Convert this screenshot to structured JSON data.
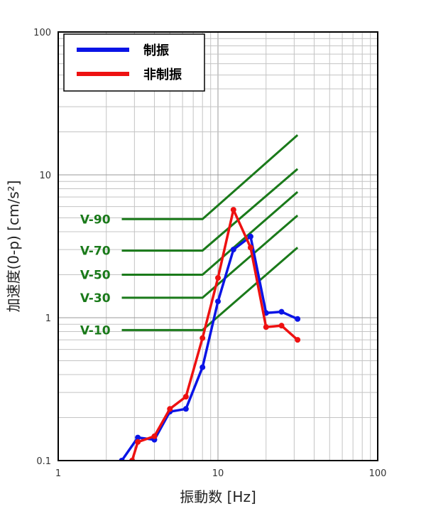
{
  "chart_data": {
    "type": "line",
    "xlabel": "振動数 [Hz]",
    "ylabel": "加速度(0-p) [cm/s²]",
    "x_scale": "log",
    "y_scale": "log",
    "xlim": [
      1,
      100
    ],
    "ylim": [
      0.1,
      100
    ],
    "x_ticks": [
      "1",
      "10",
      "100"
    ],
    "y_ticks": [
      "0.1",
      "1",
      "10",
      "100"
    ],
    "grid": true,
    "legend_position": "top-left",
    "series": [
      {
        "name": "制振",
        "color": "#0a14e6",
        "x": [
          2.5,
          3.15,
          4.0,
          5.0,
          6.3,
          8.0,
          10.0,
          12.5,
          16.0,
          20.0,
          25.0,
          31.5
        ],
        "y": [
          0.1,
          0.145,
          0.14,
          0.22,
          0.23,
          0.45,
          1.3,
          3.0,
          3.7,
          1.08,
          1.1,
          0.98
        ]
      },
      {
        "name": "非制振",
        "color": "#ee1111",
        "x": [
          2.9,
          3.15,
          4.0,
          5.0,
          6.3,
          8.0,
          10.0,
          12.5,
          16.0,
          20.0,
          25.0,
          31.5
        ],
        "y": [
          0.1,
          0.135,
          0.148,
          0.23,
          0.28,
          0.72,
          1.9,
          5.7,
          3.1,
          0.86,
          0.88,
          0.7
        ]
      }
    ],
    "reference_curves": {
      "color": "#1a7a1a",
      "curves": [
        {
          "label": "V-90",
          "x": [
            2.5,
            8.0,
            31.5
          ],
          "y": [
            4.9,
            4.9,
            19.0
          ]
        },
        {
          "label": "V-70",
          "x": [
            2.5,
            8.0,
            31.5
          ],
          "y": [
            2.95,
            2.95,
            11.0
          ]
        },
        {
          "label": "V-50",
          "x": [
            2.5,
            8.0,
            31.5
          ],
          "y": [
            2.0,
            2.0,
            7.6
          ]
        },
        {
          "label": "V-30",
          "x": [
            2.5,
            8.0,
            31.5
          ],
          "y": [
            1.38,
            1.38,
            5.2
          ]
        },
        {
          "label": "V-10",
          "x": [
            2.5,
            8.0,
            31.5
          ],
          "y": [
            0.82,
            0.82,
            3.1
          ]
        }
      ]
    }
  }
}
